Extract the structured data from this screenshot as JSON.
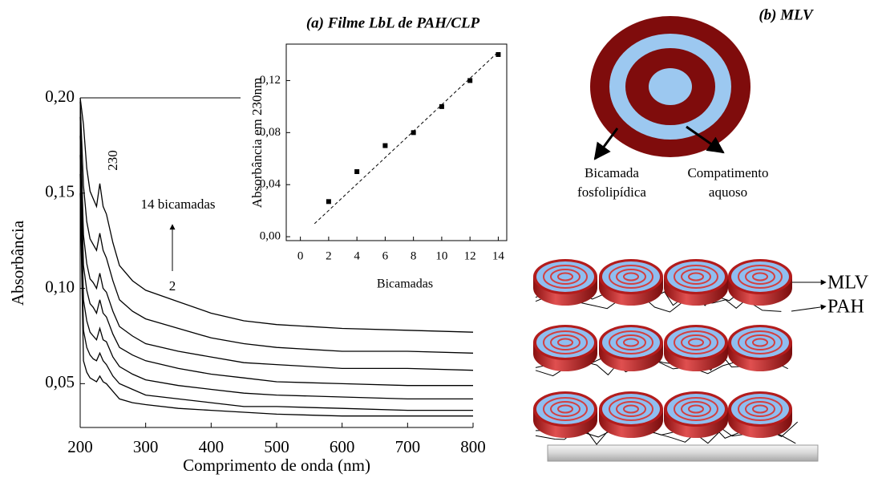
{
  "chart_data": [
    {
      "type": "line",
      "x_label": "Comprimento de onda (nm)",
      "y_label": "Absorbância",
      "x": [
        200,
        205,
        210,
        215,
        220,
        225,
        230,
        235,
        240,
        250,
        260,
        280,
        300,
        350,
        400,
        450,
        500,
        600,
        700,
        800
      ],
      "series": [
        {
          "color": "#000000",
          "values": [
            0.2,
            0.186,
            0.163,
            0.151,
            0.147,
            0.143,
            0.155,
            0.143,
            0.139,
            0.124,
            0.112,
            0.104,
            0.099,
            0.093,
            0.087,
            0.083,
            0.081,
            0.079,
            0.078,
            0.077
          ]
        },
        {
          "color": "#000000",
          "values": [
            0.198,
            0.154,
            0.135,
            0.126,
            0.123,
            0.12,
            0.129,
            0.12,
            0.116,
            0.104,
            0.094,
            0.088,
            0.084,
            0.079,
            0.074,
            0.071,
            0.069,
            0.067,
            0.067,
            0.066
          ]
        },
        {
          "color": "#000000",
          "values": [
            0.19,
            0.128,
            0.113,
            0.105,
            0.103,
            0.1,
            0.108,
            0.1,
            0.098,
            0.088,
            0.08,
            0.075,
            0.071,
            0.067,
            0.064,
            0.061,
            0.06,
            0.058,
            0.058,
            0.057
          ]
        },
        {
          "color": "#000000",
          "values": [
            0.18,
            0.112,
            0.099,
            0.092,
            0.09,
            0.087,
            0.094,
            0.087,
            0.085,
            0.076,
            0.069,
            0.065,
            0.062,
            0.058,
            0.055,
            0.053,
            0.051,
            0.05,
            0.049,
            0.049
          ]
        },
        {
          "color": "#000000",
          "values": [
            0.17,
            0.094,
            0.083,
            0.077,
            0.075,
            0.073,
            0.079,
            0.073,
            0.072,
            0.064,
            0.059,
            0.055,
            0.052,
            0.049,
            0.047,
            0.045,
            0.044,
            0.043,
            0.042,
            0.042
          ]
        },
        {
          "color": "#000000",
          "values": [
            0.16,
            0.078,
            0.069,
            0.065,
            0.063,
            0.062,
            0.066,
            0.062,
            0.06,
            0.054,
            0.05,
            0.047,
            0.044,
            0.042,
            0.04,
            0.038,
            0.038,
            0.037,
            0.036,
            0.036
          ]
        },
        {
          "color": "#000000",
          "values": [
            0.15,
            0.062,
            0.056,
            0.053,
            0.052,
            0.051,
            0.054,
            0.051,
            0.05,
            0.046,
            0.042,
            0.04,
            0.039,
            0.037,
            0.036,
            0.035,
            0.034,
            0.033,
            0.033,
            0.033
          ]
        }
      ],
      "xlim": [
        200,
        800
      ],
      "xticks": [
        200,
        300,
        400,
        500,
        600,
        700,
        800
      ],
      "ylim": [
        0.027,
        0.2
      ],
      "yticks": [
        {
          "value": 0.05,
          "label": "0,05"
        },
        {
          "value": 0.1,
          "label": "0,10"
        },
        {
          "value": 0.15,
          "label": "0,15"
        },
        {
          "value": 0.2,
          "label": "0,20"
        }
      ],
      "annotations": [
        "230",
        "14 bicamadas",
        "2"
      ]
    },
    {
      "type": "scatter",
      "title": "(a) Filme LbL de PAH/CLP",
      "x_label": "Bicamadas",
      "y_label": "Absorbância em 230nm",
      "x": [
        2,
        4,
        6,
        8,
        10,
        12,
        14
      ],
      "series": [
        {
          "color": "#000000",
          "values": [
            0.027,
            0.05,
            0.07,
            0.08,
            0.1,
            0.12,
            0.14
          ]
        }
      ],
      "trend": {
        "x": [
          1,
          14
        ],
        "values": [
          0.01,
          0.142
        ]
      },
      "xlim": [
        -1,
        14.6
      ],
      "xticks": [
        0,
        2,
        4,
        6,
        8,
        10,
        12,
        14
      ],
      "ylim": [
        -0.003,
        0.148
      ],
      "yticks": [
        {
          "value": 0,
          "label": "0,00"
        },
        {
          "value": 0.04,
          "label": "0,04"
        },
        {
          "value": 0.08,
          "label": "0,08"
        },
        {
          "value": 0.12,
          "label": "0,12"
        }
      ]
    }
  ],
  "diagram": {
    "title": "(b) MLV",
    "bilayer_label": [
      "Bicamada",
      "fosfolipídica"
    ],
    "compartment_label": [
      "Compatimento",
      "aquoso"
    ],
    "layer_labels": [
      "MLV",
      "PAH"
    ]
  }
}
